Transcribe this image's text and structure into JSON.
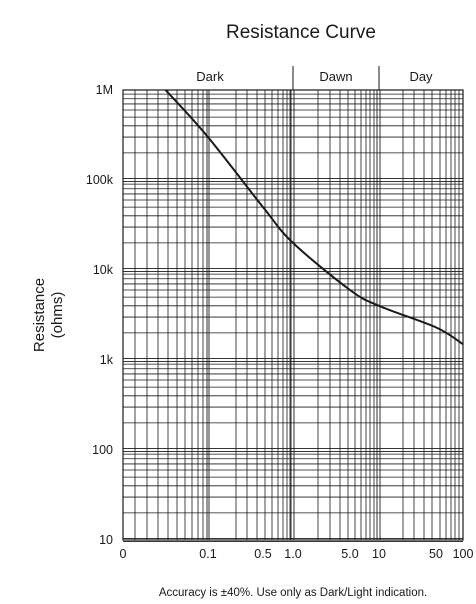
{
  "chart_data": {
    "type": "line",
    "title": "Resistance Curve",
    "ylabel_line1": "Resistance",
    "ylabel_line2": "(ohms)",
    "xlabel": "",
    "y_scale": "log",
    "ylim": [
      10,
      1000000
    ],
    "x_tick_labels": [
      "0",
      "0.1",
      "0.5",
      "1.0",
      "5.0",
      "10",
      "50",
      "100"
    ],
    "y_tick_labels": [
      "1M",
      "100k",
      "10k",
      "1k",
      "100",
      "10"
    ],
    "regions": [
      "Dark",
      "Dawn",
      "Day"
    ],
    "grid": true,
    "series": [
      {
        "x": [
          "0.05",
          "0.1",
          "0.5",
          "1.0",
          "5.0",
          "10",
          "50",
          "100"
        ],
        "y": [
          1000000,
          300000,
          50000,
          20000,
          6000,
          4000,
          2300,
          1500
        ]
      }
    ],
    "footnote": "Accuracy is ±40%. Use only as Dark/Light indication."
  }
}
